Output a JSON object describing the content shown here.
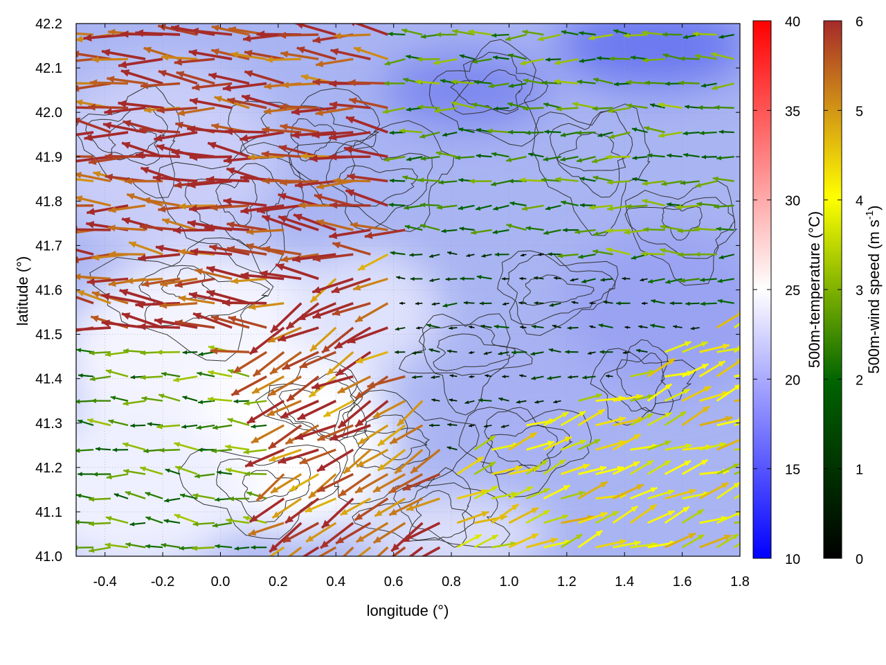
{
  "chart_data": {
    "type": "heatmap",
    "title": "",
    "xlabel": "longitude (°)",
    "ylabel": "latitude (°)",
    "xlim": [
      -0.5,
      1.8
    ],
    "ylim": [
      41.0,
      42.2
    ],
    "x_ticks": [
      -0.4,
      -0.2,
      0.0,
      0.2,
      0.4,
      0.6,
      0.8,
      1.0,
      1.2,
      1.4,
      1.6,
      1.8
    ],
    "x_tick_labels": [
      "-0.4",
      "-0.2",
      "0.0",
      "0.2",
      "0.4",
      "0.6",
      "0.8",
      "1.0",
      "1.2",
      "1.4",
      "1.6",
      "1.8"
    ],
    "y_ticks": [
      41.0,
      41.1,
      41.2,
      41.3,
      41.4,
      41.5,
      41.6,
      41.7,
      41.8,
      41.9,
      42.0,
      42.1,
      42.2
    ],
    "y_tick_labels": [
      "41.0",
      "41.1",
      "41.2",
      "41.3",
      "41.4",
      "41.5",
      "41.6",
      "41.7",
      "41.8",
      "41.9",
      "42.0",
      "42.1",
      "42.2"
    ],
    "grid": true,
    "temperature_colorbar": {
      "label": "500m-temperature (°C)",
      "range": [
        10,
        40
      ],
      "ticks": [
        "10",
        "15",
        "20",
        "25",
        "30",
        "35",
        "40"
      ],
      "colors": [
        "#0000ff",
        "#ffffff",
        "#ff0000"
      ]
    },
    "wind_colorbar": {
      "label_main": "500m-wind speed (m s",
      "label_sup": "-1",
      "label_close": ")",
      "range": [
        0,
        6
      ],
      "ticks": [
        "0",
        "1",
        "2",
        "3",
        "4",
        "5",
        "6"
      ],
      "colors": [
        "#000000",
        "#006400",
        "#ffff00",
        "#a52a2a"
      ]
    },
    "wind_regions": [
      {
        "name": "north-west strong westward flow",
        "lon": [
          -0.5,
          0.5
        ],
        "lat": [
          41.6,
          42.2
        ],
        "direction_deg": 175,
        "speed": 5.8
      },
      {
        "name": "central drainage flow to south-west",
        "lon": [
          0.2,
          0.7
        ],
        "lat": [
          41.0,
          41.6
        ],
        "direction_deg": 210,
        "speed": 5.5
      },
      {
        "name": "eastern moderate westward flow",
        "lon": [
          0.7,
          1.8
        ],
        "lat": [
          41.7,
          42.2
        ],
        "direction_deg": 180,
        "speed": 2.5
      },
      {
        "name": "central-east weak variable winds",
        "lon": [
          0.6,
          1.4
        ],
        "lat": [
          41.3,
          41.7
        ],
        "direction_deg": 180,
        "speed": 1.0
      },
      {
        "name": "south-east onshore breeze",
        "lon": [
          1.0,
          1.8
        ],
        "lat": [
          41.0,
          41.4
        ],
        "direction_deg": 20,
        "speed": 4.0
      },
      {
        "name": "south-west weak westward flow",
        "lon": [
          -0.5,
          0.2
        ],
        "lat": [
          41.0,
          41.4
        ],
        "direction_deg": 175,
        "speed": 2.5
      }
    ],
    "temperature_field_range": [
      14,
      26
    ]
  }
}
